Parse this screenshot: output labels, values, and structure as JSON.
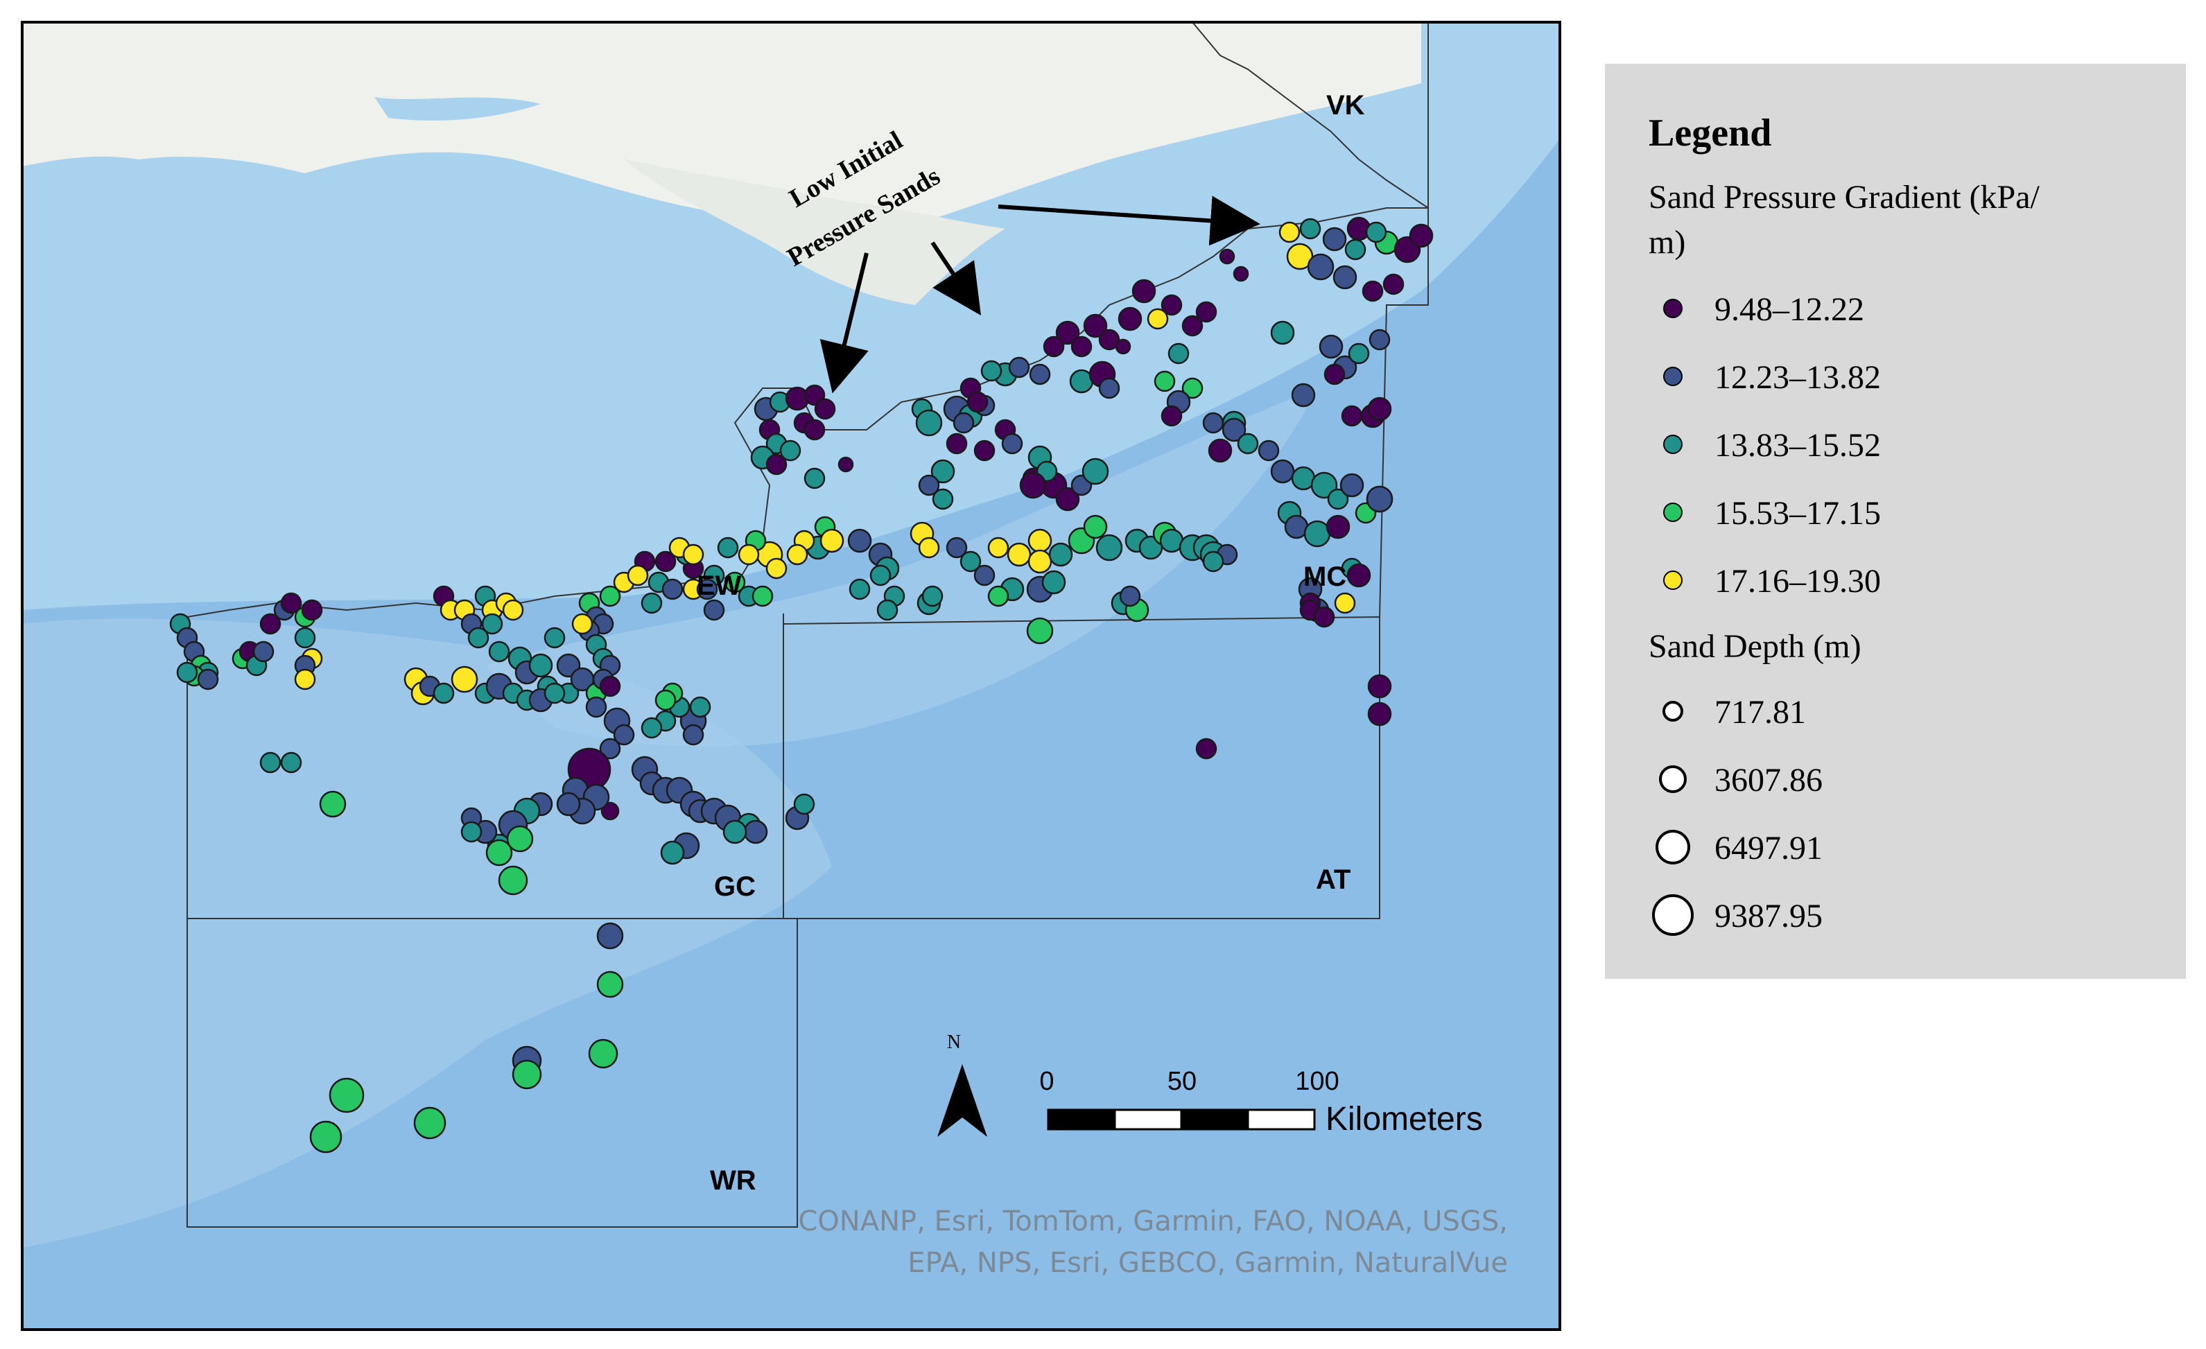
{
  "map": {
    "annotation_line1": "Low Initial",
    "annotation_line2": "Pressure Sands",
    "area_labels": [
      "VK",
      "EW",
      "MC",
      "GC",
      "AT",
      "WR"
    ],
    "north_label": "N",
    "scale_ticks": [
      "0",
      "50",
      "100"
    ],
    "scale_unit": "Kilometers",
    "credit_line1": "CONANP, Esri, TomTom, Garmin, FAO, NOAA, USGS,",
    "credit_line2": "EPA, NPS, Esri, GEBCO, Garmin, NaturalVue",
    "colors": {
      "land": "#eef1ec",
      "shelf": "#a9d2ee",
      "deep": "#8cbde6",
      "slope": "#97c2e6"
    }
  },
  "legend": {
    "title": "Legend",
    "gradient_title_line1": "Sand Pressure Gradient (kPa/",
    "gradient_title_line2": "m)",
    "gradient_classes": [
      {
        "label": "9.48–12.22",
        "color": "#440154"
      },
      {
        "label": "12.23–13.82",
        "color": "#3b528b"
      },
      {
        "label": "13.83–15.52",
        "color": "#21918c"
      },
      {
        "label": "15.53–17.15",
        "color": "#27c662"
      },
      {
        "label": "17.16–19.30",
        "color": "#fde725"
      }
    ],
    "depth_title": "Sand Depth (m)",
    "depth_classes": [
      "717.81",
      "3607.86",
      "6497.91",
      "9387.95"
    ]
  }
}
